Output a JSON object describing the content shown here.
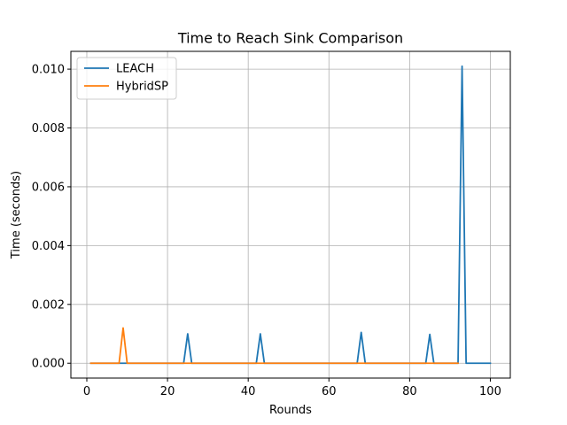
{
  "chart_data": {
    "type": "line",
    "title": "Time to Reach Sink Comparison",
    "xlabel": "Rounds",
    "ylabel": "Time (seconds)",
    "xlim": [
      -3.95,
      104.95
    ],
    "ylim": [
      -0.000505,
      0.010605
    ],
    "xticks": [
      0,
      20,
      40,
      60,
      80,
      100
    ],
    "xtick_labels": [
      "0",
      "20",
      "40",
      "60",
      "80",
      "100"
    ],
    "yticks": [
      0.0,
      0.002,
      0.004,
      0.006,
      0.008,
      0.01
    ],
    "ytick_labels": [
      "0.000",
      "0.002",
      "0.004",
      "0.006",
      "0.008",
      "0.010"
    ],
    "grid": true,
    "legend": "top-left",
    "series": [
      {
        "name": "LEACH",
        "color": "#1f77b4",
        "x": [
          1,
          24,
          25,
          26,
          42,
          43,
          44,
          67,
          68,
          69,
          84,
          85,
          86,
          92,
          93,
          94,
          100
        ],
        "y": [
          0,
          0,
          0.001,
          0,
          0,
          0.001,
          0,
          0,
          0.00105,
          0,
          0,
          0.00098,
          0,
          0,
          0.0101,
          0,
          0
        ]
      },
      {
        "name": "HybridSP",
        "color": "#ff7f0e",
        "x": [
          1,
          8,
          9,
          10,
          92
        ],
        "y": [
          0,
          0,
          0.0012,
          0,
          0
        ]
      }
    ]
  }
}
